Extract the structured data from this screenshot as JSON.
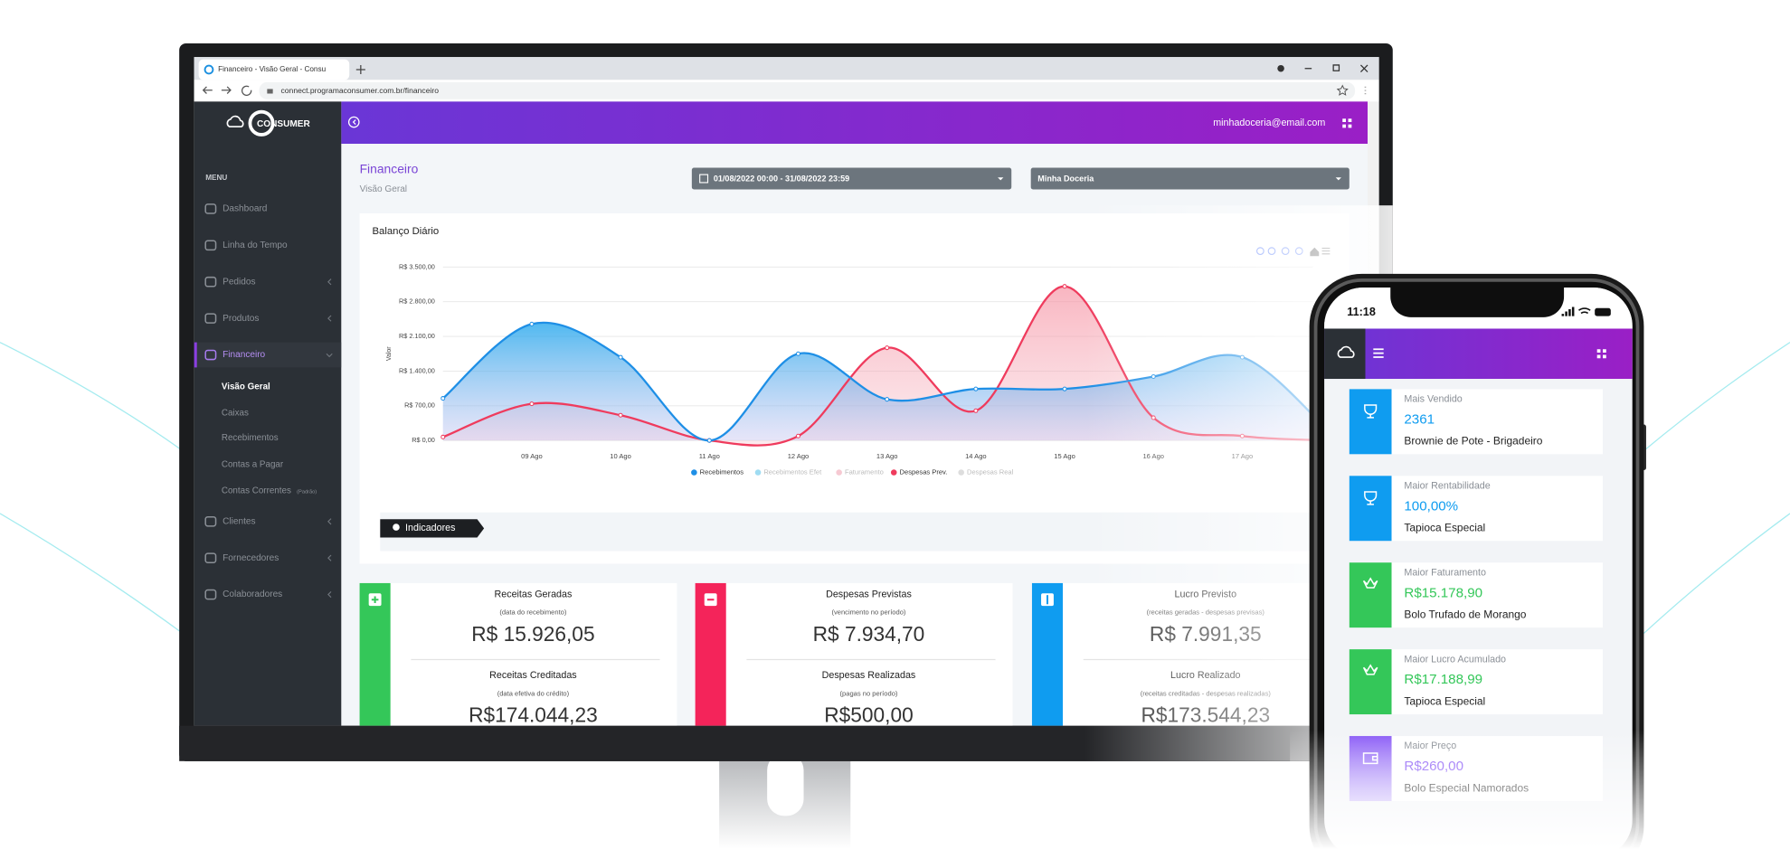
{
  "browser": {
    "tab_title": "Financeiro - Visão Geral - Consu",
    "url": "connect.programaconsumer.com.br/financeiro"
  },
  "sidebar": {
    "logo": "CONSUMER",
    "menu_label": "MENU",
    "items": [
      {
        "label": "Dashboard"
      },
      {
        "label": "Linha do Tempo"
      },
      {
        "label": "Pedidos",
        "expandable": true
      },
      {
        "label": "Produtos",
        "expandable": true
      },
      {
        "label": "Financeiro",
        "expandable": true,
        "active": true,
        "children": [
          {
            "label": "Visão Geral",
            "active": true
          },
          {
            "label": "Caixas"
          },
          {
            "label": "Recebimentos"
          },
          {
            "label": "Contas a Pagar"
          },
          {
            "label": "Contas Correntes",
            "tag": "(Padrão)"
          }
        ]
      },
      {
        "label": "Clientes",
        "expandable": true
      },
      {
        "label": "Fornecedores",
        "expandable": true
      },
      {
        "label": "Colaboradores",
        "expandable": true
      }
    ]
  },
  "header": {
    "email": "minhadoceria@email.com"
  },
  "page": {
    "title": "Financeiro",
    "subtitle": "Visão Geral",
    "date_range": "01/08/2022 00:00 - 31/08/2022 23:59",
    "store": "Minha Doceria"
  },
  "chart_data": {
    "type": "area",
    "title": "Balanço Diário",
    "y_label": "Valor",
    "categories": [
      null,
      "09 Ago",
      "10 Ago",
      "11 Ago",
      "12 Ago",
      "13 Ago",
      "14 Ago",
      "15 Ago",
      "16 Ago",
      "17 Ago",
      null
    ],
    "series": [
      {
        "name": "Recebimentos",
        "color": "#1e8fe6",
        "values": [
          850,
          2350,
          1680,
          0,
          1750,
          830,
          1040,
          1040,
          1290,
          1680,
          140
        ]
      },
      {
        "name": "Recebimentos Efet",
        "color": "#9fdcf2"
      },
      {
        "name": "Faturamento",
        "color": "#f6c9d2"
      },
      {
        "name": "Despesas Prev.",
        "color": "#ef3b5d",
        "values": [
          70,
          740,
          510,
          0,
          90,
          1870,
          600,
          3110,
          460,
          90,
          0
        ]
      },
      {
        "name": "Despesas Real",
        "color": "#dddddd"
      }
    ],
    "ylim": [
      0,
      3500
    ],
    "yticks": [
      {
        "value": 0,
        "label": "R$ 0,00"
      },
      {
        "value": 700,
        "label": "R$ 700,00"
      },
      {
        "value": 1400,
        "label": "R$ 1.400,00"
      },
      {
        "value": 2100,
        "label": "R$ 2.100,00"
      },
      {
        "value": 2800,
        "label": "R$ 2.800,00"
      },
      {
        "value": 3500,
        "label": "R$ 3.500,00"
      }
    ],
    "grid": true,
    "legend": "bottom"
  },
  "indicators_label": "Indicadores",
  "cards": [
    {
      "color": "#34c759",
      "title": "Receitas Geradas",
      "note": "(data do recebimento)",
      "value": "R$ 15.926,05",
      "title2": "Receitas Creditadas",
      "note2": "(data efetiva do crédito)",
      "value2": "R$174.044,23"
    },
    {
      "color": "#f4245a",
      "title": "Despesas Previstas",
      "note": "(vencimento no período)",
      "value": "R$ 7.934,70",
      "title2": "Despesas Realizadas",
      "note2": "(pagas no período)",
      "value2": "R$500,00"
    },
    {
      "color": "#0f9cf0",
      "title": "Lucro Previsto",
      "note": "(receitas geradas - despesas previsas)",
      "value": "R$ 7.991,35",
      "title2": "Lucro Realizado",
      "note2": "(receitas creditadas - despesas realizadas)",
      "value2": "R$173.544,23"
    }
  ],
  "phone": {
    "time": "11:18",
    "items": [
      {
        "color": "#0f9cf0",
        "label": "Mais Vendido",
        "value": "2361",
        "name": "Brownie de Pote - Brigadeiro"
      },
      {
        "color": "#0f9cf0",
        "label": "Maior Rentabilidade",
        "value": "100,00%",
        "name": "Tapioca Especial"
      },
      {
        "color": "#34c759",
        "label": "Maior Faturamento",
        "value": "R$15.178,90",
        "name": "Bolo Trufado de Morango"
      },
      {
        "color": "#34c759",
        "label": "Maior Lucro Acumulado",
        "value": "R$17.188,99",
        "name": "Tapioca Especial"
      },
      {
        "color": "#8b5cf6",
        "label": "Maior Preço",
        "value": "R$260,00",
        "name": "Bolo Especial Namorados"
      }
    ]
  }
}
